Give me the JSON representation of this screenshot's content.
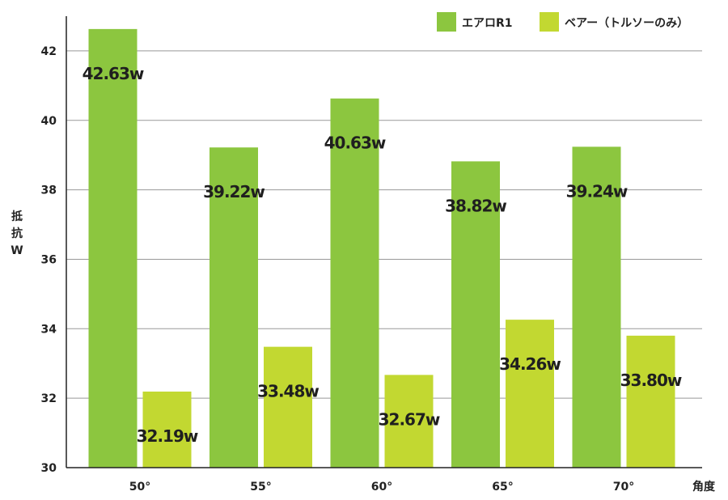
{
  "chart_data": {
    "type": "bar",
    "title": "",
    "xlabel": "角度",
    "ylabel": [
      "抵",
      "抗",
      "W"
    ],
    "ylim": [
      30,
      43
    ],
    "yticks": [
      30,
      32,
      34,
      36,
      38,
      40,
      42
    ],
    "grid": true,
    "legend_position": "top-right",
    "categories": [
      "50°",
      "55°",
      "60°",
      "65°",
      "70°"
    ],
    "series": [
      {
        "name": "エアロR1",
        "color": "#8cc63f",
        "values": [
          42.63,
          39.22,
          40.63,
          38.82,
          39.24
        ],
        "labels": [
          "42.63w",
          "39.22w",
          "40.63w",
          "38.82w",
          "39.24w"
        ]
      },
      {
        "name": "ベアー（トルソーのみ）",
        "color": "#c2d831",
        "values": [
          32.19,
          33.48,
          32.67,
          34.26,
          33.8
        ],
        "labels": [
          "32.19w",
          "33.48w",
          "32.67w",
          "34.26w",
          "33.80w"
        ]
      }
    ]
  }
}
